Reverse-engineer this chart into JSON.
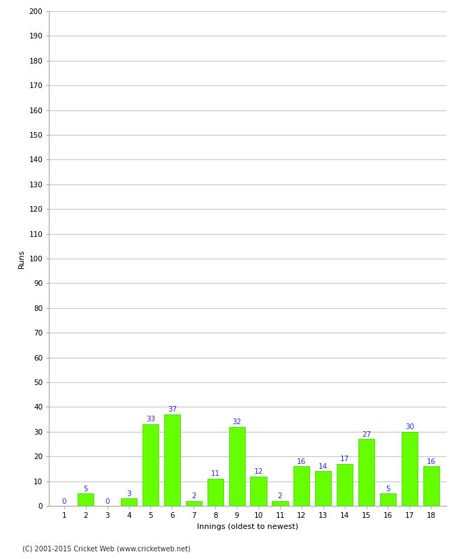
{
  "xlabel": "Innings (oldest to newest)",
  "ylabel": "Runs",
  "categories": [
    1,
    2,
    3,
    4,
    5,
    6,
    7,
    8,
    9,
    10,
    11,
    12,
    13,
    14,
    15,
    16,
    17,
    18
  ],
  "values": [
    0,
    5,
    0,
    3,
    33,
    37,
    2,
    11,
    32,
    12,
    2,
    16,
    14,
    17,
    27,
    5,
    30,
    16
  ],
  "bar_color": "#66ff00",
  "bar_edge_color": "#44cc00",
  "label_color": "#3333cc",
  "ylim": [
    0,
    200
  ],
  "yticks": [
    0,
    10,
    20,
    30,
    40,
    50,
    60,
    70,
    80,
    90,
    100,
    110,
    120,
    130,
    140,
    150,
    160,
    170,
    180,
    190,
    200
  ],
  "footnote": "(C) 2001-2015 Cricket Web (www.cricketweb.net)",
  "background_color": "#ffffff",
  "grid_color": "#c8c8c8",
  "label_fontsize": 7.5,
  "axis_label_fontsize": 8,
  "tick_fontsize": 7.5,
  "footnote_fontsize": 7
}
